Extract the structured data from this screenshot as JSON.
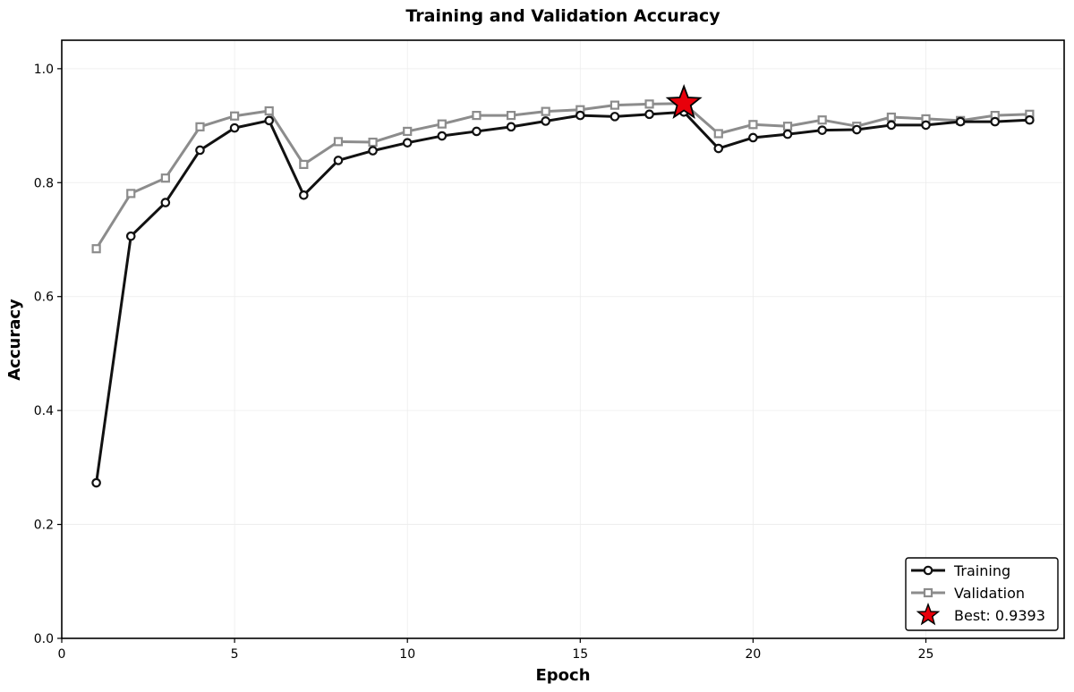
{
  "chart_data": {
    "type": "line",
    "title": "Training and Validation Accuracy",
    "xlabel": "Epoch",
    "ylabel": "Accuracy",
    "xlim": [
      0,
      29
    ],
    "ylim": [
      0.0,
      1.05
    ],
    "grid": true,
    "legend_position": "bottom-right",
    "x_ticks": [
      0,
      5,
      10,
      15,
      20,
      25
    ],
    "y_ticks": [
      0.0,
      0.2,
      0.4,
      0.6,
      0.8,
      1.0
    ],
    "x_tick_labels": [
      "0",
      "5",
      "10",
      "15",
      "20",
      "25"
    ],
    "y_tick_labels": [
      "0.0",
      "0.2",
      "0.4",
      "0.6",
      "0.8",
      "1.0"
    ],
    "x": [
      1,
      2,
      3,
      4,
      5,
      6,
      7,
      8,
      9,
      10,
      11,
      12,
      13,
      14,
      15,
      16,
      17,
      18,
      19,
      20,
      21,
      22,
      23,
      24,
      25,
      26,
      27,
      28
    ],
    "series": [
      {
        "name": "Training",
        "color": "#111111",
        "marker": "circle",
        "values": [
          0.273,
          0.706,
          0.765,
          0.857,
          0.896,
          0.909,
          0.778,
          0.839,
          0.856,
          0.87,
          0.882,
          0.89,
          0.898,
          0.908,
          0.918,
          0.916,
          0.92,
          0.924,
          0.86,
          0.879,
          0.885,
          0.892,
          0.893,
          0.901,
          0.901,
          0.907,
          0.907,
          0.91
        ]
      },
      {
        "name": "Validation",
        "color": "#8c8c8c",
        "marker": "square",
        "values": [
          0.684,
          0.781,
          0.808,
          0.898,
          0.917,
          0.926,
          0.832,
          0.872,
          0.871,
          0.89,
          0.903,
          0.918,
          0.918,
          0.925,
          0.928,
          0.936,
          0.938,
          0.939,
          0.886,
          0.902,
          0.899,
          0.91,
          0.899,
          0.915,
          0.912,
          0.909,
          0.918,
          0.92
        ]
      }
    ],
    "best": {
      "label": "Best: 0.9393",
      "epoch": 18,
      "value": 0.9393,
      "color": "#e8000b"
    }
  }
}
